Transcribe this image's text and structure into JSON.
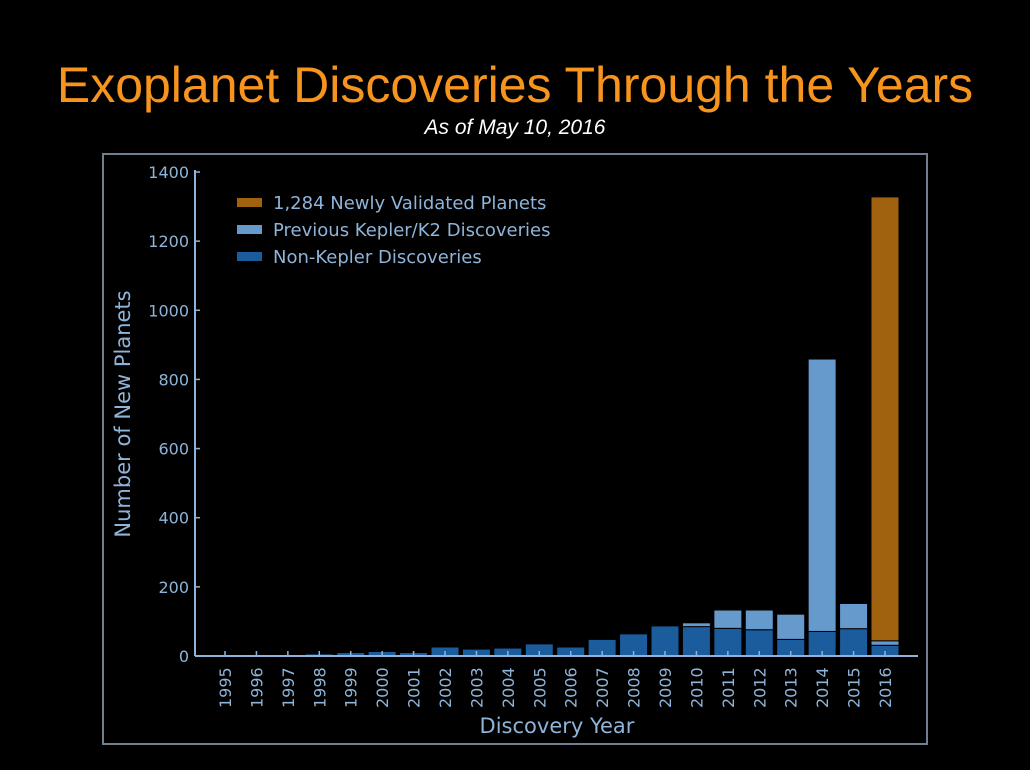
{
  "chart_data": {
    "type": "bar",
    "stacked": true,
    "title": "Exoplanet Discoveries Through the Years",
    "subtitle": "As of May 10, 2016",
    "xlabel": "Discovery Year",
    "ylabel": "Number of New Planets",
    "ylim": [
      0,
      1400
    ],
    "yticks": [
      0,
      200,
      400,
      600,
      800,
      1000,
      1200,
      1400
    ],
    "categories": [
      "1995",
      "1996",
      "1997",
      "1998",
      "1999",
      "2000",
      "2001",
      "2002",
      "2003",
      "2004",
      "2005",
      "2006",
      "2007",
      "2008",
      "2009",
      "2010",
      "2011",
      "2012",
      "2013",
      "2014",
      "2015",
      "2016"
    ],
    "legend_position": "top-left",
    "grid": false,
    "series": [
      {
        "name": "Non-Kepler Discoveries",
        "color": "#1a5c9c",
        "values": [
          1,
          1,
          1,
          6,
          10,
          13,
          10,
          26,
          20,
          23,
          35,
          26,
          48,
          64,
          87,
          85,
          80,
          76,
          48,
          71,
          79,
          31
        ]
      },
      {
        "name": "Previous Kepler/K2 Discoveries",
        "color": "#6699cc",
        "values": [
          0,
          0,
          0,
          0,
          0,
          0,
          0,
          0,
          0,
          0,
          0,
          0,
          0,
          0,
          0,
          11,
          53,
          57,
          73,
          788,
          73,
          13
        ]
      },
      {
        "name": "1,284 Newly Validated Planets",
        "color": "#a0620f",
        "values": [
          0,
          0,
          0,
          0,
          0,
          0,
          0,
          0,
          0,
          0,
          0,
          0,
          0,
          0,
          0,
          0,
          0,
          0,
          0,
          0,
          0,
          1284
        ]
      }
    ]
  }
}
